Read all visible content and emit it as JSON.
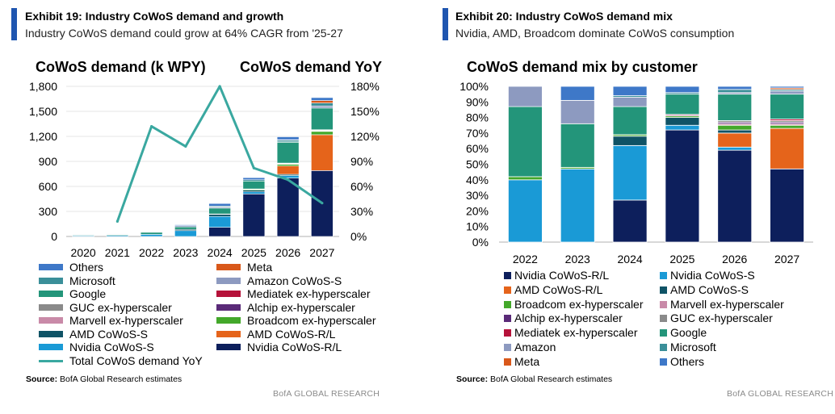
{
  "colors": {
    "Nvidia CoWoS-R/L": "#0d1f5c",
    "Nvidia CoWoS-S": "#1a9ad6",
    "AMD CoWoS-R/L": "#e5641b",
    "AMD CoWoS-S": "#0f5366",
    "Broadcom ex-hyperscaler": "#43a82a",
    "Marvell ex-hyperscaler": "#c98aa8",
    "Alchip ex-hyperscaler": "#5a2a78",
    "GUC ex-hyperscaler": "#8a8a8a",
    "Mediatek ex-hyperscaler": "#b5123a",
    "Google": "#23957a",
    "Amazon": "#8d9ac0",
    "Amazon CoWoS-S": "#8d9ac0",
    "Microsoft": "#3a8f99",
    "Meta": "#d9581a",
    "Others": "#3e78c8",
    "Total CoWoS demand YoY": "#3aa8a0",
    "accent": "#1f56b0"
  },
  "left": {
    "exhibit_title": "Exhibit 19: Industry CoWoS demand and growth",
    "exhibit_subtitle": "Industry CoWoS demand could grow at 64% CAGR from '25-27",
    "source_label": "Source:",
    "source_text": " BofA Global Research estimates",
    "brand": "BofA GLOBAL RESEARCH"
  },
  "right": {
    "exhibit_title": "Exhibit 20: Industry CoWoS demand mix",
    "exhibit_subtitle": "Nvidia, AMD, Broadcom dominate CoWoS consumption",
    "source_label": "Source:",
    "source_text": " BofA Global Research estimates",
    "brand": "BofA GLOBAL RESEARCH"
  },
  "chart_data": [
    {
      "type": "bar",
      "stacked": true,
      "title": "CoWoS demand (k WPY)",
      "title_right": "CoWoS demand YoY",
      "categories": [
        "2020",
        "2021",
        "2022",
        "2023",
        "2024",
        "2025",
        "2026",
        "2027"
      ],
      "ylim": [
        0,
        1800
      ],
      "yticks": [
        0,
        300,
        600,
        900,
        1200,
        1500,
        1800
      ],
      "ytick_labels": [
        "0",
        "300",
        "600",
        "900",
        "1,200",
        "1,500",
        "1,800"
      ],
      "y2lim": [
        0,
        1.8
      ],
      "y2ticks": [
        0,
        0.3,
        0.6,
        0.9,
        1.2,
        1.5,
        1.8
      ],
      "y2tick_labels": [
        "0%",
        "30%",
        "60%",
        "90%",
        "120%",
        "150%",
        "180%"
      ],
      "series": [
        {
          "name": "Nvidia CoWoS-R/L",
          "values": [
            0,
            0,
            0,
            0,
            110,
            510,
            700,
            790
          ]
        },
        {
          "name": "Nvidia CoWoS-S",
          "values": [
            10,
            12,
            25,
            70,
            130,
            25,
            30,
            0
          ]
        },
        {
          "name": "AMD CoWoS-S",
          "values": [
            0,
            0,
            0,
            15,
            25,
            20,
            15,
            0
          ]
        },
        {
          "name": "AMD CoWoS-R/L",
          "values": [
            0,
            0,
            0,
            0,
            0,
            0,
            100,
            430
          ]
        },
        {
          "name": "Broadcom ex-hyperscaler",
          "values": [
            0,
            0,
            0,
            0,
            5,
            10,
            20,
            40
          ]
        },
        {
          "name": "Alchip ex-hyperscaler",
          "values": [
            0,
            0,
            0,
            0,
            0,
            0,
            5,
            5
          ]
        },
        {
          "name": "Marvell ex-hyperscaler",
          "values": [
            0,
            0,
            0,
            0,
            0,
            5,
            5,
            5
          ]
        },
        {
          "name": "GUC ex-hyperscaler",
          "values": [
            0,
            0,
            0,
            0,
            0,
            0,
            5,
            5
          ]
        },
        {
          "name": "Mediatek ex-hyperscaler",
          "values": [
            0,
            0,
            0,
            0,
            0,
            0,
            0,
            5
          ]
        },
        {
          "name": "Google",
          "values": [
            10,
            12,
            25,
            30,
            70,
            95,
            250,
            260
          ]
        },
        {
          "name": "Amazon CoWoS-S",
          "values": [
            3,
            3,
            7,
            15,
            15,
            0,
            5,
            25
          ]
        },
        {
          "name": "Microsoft",
          "values": [
            0,
            0,
            0,
            0,
            10,
            15,
            20,
            35
          ]
        },
        {
          "name": "Meta",
          "values": [
            0,
            0,
            0,
            0,
            0,
            0,
            5,
            30
          ]
        },
        {
          "name": "Others",
          "values": [
            2,
            3,
            5,
            10,
            30,
            25,
            35,
            35
          ]
        }
      ],
      "line": {
        "name": "Total CoWoS demand YoY",
        "x": [
          "2021",
          "2022",
          "2023",
          "2024",
          "2025",
          "2026",
          "2027"
        ],
        "values": [
          0.18,
          1.32,
          1.08,
          1.8,
          0.82,
          0.68,
          0.4
        ]
      },
      "legend": [
        {
          "name": "Others",
          "kind": "bar"
        },
        {
          "name": "Meta",
          "kind": "bar"
        },
        {
          "name": "Microsoft",
          "kind": "bar"
        },
        {
          "name": "Amazon CoWoS-S",
          "kind": "bar"
        },
        {
          "name": "Google",
          "kind": "bar"
        },
        {
          "name": "Mediatek ex-hyperscaler",
          "kind": "bar"
        },
        {
          "name": "GUC ex-hyperscaler",
          "kind": "bar"
        },
        {
          "name": "Alchip ex-hyperscaler",
          "kind": "bar"
        },
        {
          "name": "Marvell ex-hyperscaler",
          "kind": "bar"
        },
        {
          "name": "Broadcom ex-hyperscaler",
          "kind": "bar"
        },
        {
          "name": "AMD CoWoS-S",
          "kind": "bar"
        },
        {
          "name": "AMD CoWoS-R/L",
          "kind": "bar"
        },
        {
          "name": "Nvidia CoWoS-S",
          "kind": "bar"
        },
        {
          "name": "Nvidia CoWoS-R/L",
          "kind": "bar"
        },
        {
          "name": "Total CoWoS demand YoY",
          "kind": "line"
        }
      ]
    },
    {
      "type": "bar",
      "stacked": true,
      "percent": true,
      "title": "CoWoS demand mix by customer",
      "categories": [
        "2022",
        "2023",
        "2024",
        "2025",
        "2026",
        "2027"
      ],
      "ylim": [
        0,
        1
      ],
      "yticks": [
        0,
        0.1,
        0.2,
        0.3,
        0.4,
        0.5,
        0.6,
        0.7,
        0.8,
        0.9,
        1.0
      ],
      "ytick_labels": [
        "0%",
        "10%",
        "20%",
        "30%",
        "40%",
        "50%",
        "60%",
        "70%",
        "80%",
        "90%",
        "100%"
      ],
      "series": [
        {
          "name": "Nvidia CoWoS-R/L",
          "values": [
            0,
            0,
            0.27,
            0.72,
            0.59,
            0.47
          ]
        },
        {
          "name": "Nvidia CoWoS-S",
          "values": [
            0.4,
            0.47,
            0.35,
            0.03,
            0.02,
            0
          ]
        },
        {
          "name": "AMD CoWoS-R/L",
          "values": [
            0,
            0,
            0,
            0,
            0.09,
            0.26
          ]
        },
        {
          "name": "AMD CoWoS-S",
          "values": [
            0,
            0,
            0.06,
            0.05,
            0.02,
            0
          ]
        },
        {
          "name": "Broadcom ex-hyperscaler",
          "values": [
            0.02,
            0.01,
            0.01,
            0.01,
            0.03,
            0.02
          ]
        },
        {
          "name": "Marvell ex-hyperscaler",
          "values": [
            0,
            0,
            0,
            0.01,
            0.01,
            0.01
          ]
        },
        {
          "name": "Alchip ex-hyperscaler",
          "values": [
            0,
            0,
            0,
            0,
            0.01,
            0.01
          ]
        },
        {
          "name": "GUC ex-hyperscaler",
          "values": [
            0,
            0,
            0,
            0,
            0.01,
            0.01
          ]
        },
        {
          "name": "Mediatek ex-hyperscaler",
          "values": [
            0,
            0,
            0,
            0,
            0,
            0.01
          ]
        },
        {
          "name": "Google",
          "values": [
            0.45,
            0.28,
            0.18,
            0.13,
            0.17,
            0.16
          ]
        },
        {
          "name": "Amazon",
          "values": [
            0.13,
            0.15,
            0.06,
            0,
            0.01,
            0.02
          ]
        },
        {
          "name": "Microsoft",
          "values": [
            0,
            0,
            0.01,
            0.01,
            0.02,
            0.01
          ]
        },
        {
          "name": "Meta",
          "values": [
            0,
            0,
            0,
            0,
            0,
            0.01
          ]
        },
        {
          "name": "Others",
          "values": [
            0,
            0.09,
            0.06,
            0.04,
            0.02,
            0.01
          ]
        }
      ],
      "legend": [
        "Nvidia CoWoS-R/L",
        "Nvidia CoWoS-S",
        "AMD CoWoS-R/L",
        "AMD CoWoS-S",
        "Broadcom ex-hyperscaler",
        "Marvell ex-hyperscaler",
        "Alchip ex-hyperscaler",
        "GUC ex-hyperscaler",
        "Mediatek ex-hyperscaler",
        "Google",
        "Amazon",
        "Microsoft",
        "Meta",
        "Others"
      ]
    }
  ]
}
